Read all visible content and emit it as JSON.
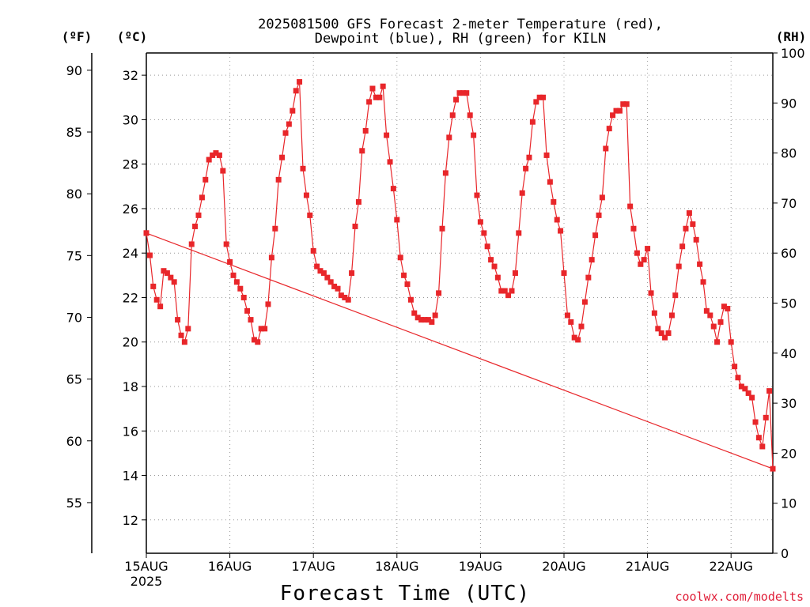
{
  "title": {
    "line1": "2025081500 GFS Forecast 2-meter Temperature (red),",
    "line2": "Dewpoint (blue), RH (green) for KILN"
  },
  "units": {
    "fahrenheit": "(ºF)",
    "celsius": "(ºC)",
    "rh": "(RH)"
  },
  "xaxis_title": "Forecast Time (UTC)",
  "credit": "coolwx.com/modelts",
  "colors": {
    "temperature": "#e8262a",
    "dewpoint": "#1f3fd8",
    "rh": "#00c400",
    "axis": "#000000",
    "credit": "#e0203a"
  },
  "chart_data": {
    "type": "line",
    "grid": true,
    "x_unit": "days since 15AUG 00Z",
    "xlim": [
      0,
      7.5
    ],
    "x_ticks": [
      {
        "x": 0,
        "label": "15AUG",
        "sublabel": "2025"
      },
      {
        "x": 1,
        "label": "16AUG"
      },
      {
        "x": 2,
        "label": "17AUG"
      },
      {
        "x": 3,
        "label": "18AUG"
      },
      {
        "x": 4,
        "label": "19AUG"
      },
      {
        "x": 5,
        "label": "20AUG"
      },
      {
        "x": 6,
        "label": "21AUG"
      },
      {
        "x": 7,
        "label": "22AUG"
      }
    ],
    "y_celsius": {
      "ylim": [
        10.5,
        33
      ],
      "ticks": [
        12,
        14,
        16,
        18,
        20,
        22,
        24,
        26,
        28,
        30,
        32
      ]
    },
    "y_fahrenheit": {
      "ticks": [
        55,
        60,
        65,
        70,
        75,
        80,
        85,
        90
      ]
    },
    "y_rh": {
      "ylim": [
        0,
        100
      ],
      "ticks": [
        0,
        10,
        20,
        30,
        40,
        50,
        60,
        70,
        80,
        90,
        100
      ]
    },
    "series": [
      {
        "name": "Temperature",
        "axis": "celsius",
        "marker": "filled-square",
        "points": [
          [
            0.0,
            24.9
          ],
          [
            0.042,
            23.9
          ],
          [
            0.083,
            22.5
          ],
          [
            0.125,
            21.9
          ],
          [
            0.167,
            21.6
          ],
          [
            0.208,
            23.2
          ],
          [
            0.25,
            23.1
          ],
          [
            0.292,
            22.9
          ],
          [
            0.333,
            22.7
          ],
          [
            0.375,
            21.0
          ],
          [
            0.417,
            20.3
          ],
          [
            0.458,
            20.0
          ],
          [
            0.5,
            20.6
          ],
          [
            0.542,
            24.4
          ],
          [
            0.583,
            25.2
          ],
          [
            0.625,
            25.7
          ],
          [
            0.667,
            26.5
          ],
          [
            0.708,
            27.3
          ],
          [
            0.75,
            28.2
          ],
          [
            0.792,
            28.4
          ],
          [
            0.833,
            28.5
          ],
          [
            0.875,
            28.4
          ],
          [
            0.917,
            27.7
          ],
          [
            0.958,
            24.4
          ],
          [
            1.0,
            23.6
          ],
          [
            1.042,
            23.0
          ],
          [
            1.083,
            22.7
          ],
          [
            1.125,
            22.4
          ],
          [
            1.167,
            22.0
          ],
          [
            1.208,
            21.4
          ],
          [
            1.25,
            21.0
          ],
          [
            1.292,
            20.1
          ],
          [
            1.333,
            20.0
          ],
          [
            1.375,
            20.6
          ],
          [
            1.417,
            20.6
          ],
          [
            1.458,
            21.7
          ],
          [
            1.5,
            23.8
          ],
          [
            1.542,
            25.1
          ],
          [
            1.583,
            27.3
          ],
          [
            1.625,
            28.3
          ],
          [
            1.667,
            29.4
          ],
          [
            1.708,
            29.8
          ],
          [
            1.75,
            30.4
          ],
          [
            1.792,
            31.3
          ],
          [
            1.833,
            31.7
          ],
          [
            1.875,
            27.8
          ],
          [
            1.917,
            26.6
          ],
          [
            1.958,
            25.7
          ],
          [
            2.0,
            24.1
          ],
          [
            2.042,
            23.4
          ],
          [
            2.083,
            23.2
          ],
          [
            2.125,
            23.1
          ],
          [
            2.167,
            22.9
          ],
          [
            2.208,
            22.7
          ],
          [
            2.25,
            22.5
          ],
          [
            2.292,
            22.4
          ],
          [
            2.333,
            22.1
          ],
          [
            2.375,
            22.0
          ],
          [
            2.417,
            21.9
          ],
          [
            2.458,
            23.1
          ],
          [
            2.5,
            25.2
          ],
          [
            2.542,
            26.3
          ],
          [
            2.583,
            28.6
          ],
          [
            2.625,
            29.5
          ],
          [
            2.667,
            30.8
          ],
          [
            2.708,
            31.4
          ],
          [
            2.75,
            31.0
          ],
          [
            2.792,
            31.0
          ],
          [
            2.833,
            31.5
          ],
          [
            2.875,
            29.3
          ],
          [
            2.917,
            28.1
          ],
          [
            2.958,
            26.9
          ],
          [
            3.0,
            25.5
          ],
          [
            3.042,
            23.8
          ],
          [
            3.083,
            23.0
          ],
          [
            3.125,
            22.6
          ],
          [
            3.167,
            21.9
          ],
          [
            3.208,
            21.3
          ],
          [
            3.25,
            21.1
          ],
          [
            3.292,
            21.0
          ],
          [
            3.333,
            21.0
          ],
          [
            3.375,
            21.0
          ],
          [
            3.417,
            20.9
          ],
          [
            3.458,
            21.2
          ],
          [
            3.5,
            22.2
          ],
          [
            3.542,
            25.1
          ],
          [
            3.583,
            27.6
          ],
          [
            3.625,
            29.2
          ],
          [
            3.667,
            30.2
          ],
          [
            3.708,
            30.9
          ],
          [
            3.75,
            31.2
          ],
          [
            3.792,
            31.2
          ],
          [
            3.833,
            31.2
          ],
          [
            3.875,
            30.2
          ],
          [
            3.917,
            29.3
          ],
          [
            3.958,
            26.6
          ],
          [
            4.0,
            25.4
          ],
          [
            4.042,
            24.9
          ],
          [
            4.083,
            24.3
          ],
          [
            4.125,
            23.7
          ],
          [
            4.167,
            23.4
          ],
          [
            4.208,
            22.9
          ],
          [
            4.25,
            22.3
          ],
          [
            4.292,
            22.3
          ],
          [
            4.333,
            22.1
          ],
          [
            4.375,
            22.3
          ],
          [
            4.417,
            23.1
          ],
          [
            4.458,
            24.9
          ],
          [
            4.5,
            26.7
          ],
          [
            4.542,
            27.8
          ],
          [
            4.583,
            28.3
          ],
          [
            4.625,
            29.9
          ],
          [
            4.667,
            30.8
          ],
          [
            4.708,
            31.0
          ],
          [
            4.75,
            31.0
          ],
          [
            4.792,
            28.4
          ],
          [
            4.833,
            27.2
          ],
          [
            4.875,
            26.3
          ],
          [
            4.917,
            25.5
          ],
          [
            4.958,
            25.0
          ],
          [
            5.0,
            23.1
          ],
          [
            5.042,
            21.2
          ],
          [
            5.083,
            20.9
          ],
          [
            5.125,
            20.2
          ],
          [
            5.167,
            20.1
          ],
          [
            5.208,
            20.7
          ],
          [
            5.25,
            21.8
          ],
          [
            5.292,
            22.9
          ],
          [
            5.333,
            23.7
          ],
          [
            5.375,
            24.8
          ],
          [
            5.417,
            25.7
          ],
          [
            5.458,
            26.5
          ],
          [
            5.5,
            28.7
          ],
          [
            5.542,
            29.6
          ],
          [
            5.583,
            30.2
          ],
          [
            5.625,
            30.4
          ],
          [
            5.667,
            30.4
          ],
          [
            5.708,
            30.7
          ],
          [
            5.75,
            30.7
          ],
          [
            5.792,
            26.1
          ],
          [
            5.833,
            25.1
          ],
          [
            5.875,
            24.0
          ],
          [
            5.917,
            23.5
          ],
          [
            5.958,
            23.7
          ],
          [
            6.0,
            24.2
          ],
          [
            6.042,
            22.2
          ],
          [
            6.083,
            21.3
          ],
          [
            6.125,
            20.6
          ],
          [
            6.167,
            20.4
          ],
          [
            6.208,
            20.2
          ],
          [
            6.25,
            20.4
          ],
          [
            6.292,
            21.2
          ],
          [
            6.333,
            22.1
          ],
          [
            6.375,
            23.4
          ],
          [
            6.417,
            24.3
          ],
          [
            6.458,
            25.1
          ],
          [
            6.5,
            25.8
          ],
          [
            6.542,
            25.3
          ],
          [
            6.583,
            24.6
          ],
          [
            6.625,
            23.5
          ],
          [
            6.667,
            22.7
          ],
          [
            6.708,
            21.4
          ],
          [
            6.75,
            21.2
          ],
          [
            6.792,
            20.7
          ],
          [
            6.833,
            20.0
          ],
          [
            6.875,
            20.9
          ],
          [
            6.917,
            21.6
          ],
          [
            6.958,
            21.5
          ],
          [
            7.0,
            20.0
          ],
          [
            7.042,
            18.9
          ],
          [
            7.083,
            18.4
          ],
          [
            7.125,
            18.0
          ],
          [
            7.167,
            17.9
          ],
          [
            7.208,
            17.7
          ],
          [
            7.25,
            17.5
          ],
          [
            7.292,
            16.4
          ],
          [
            7.333,
            15.7
          ],
          [
            7.375,
            15.3
          ],
          [
            7.417,
            16.6
          ],
          [
            7.458,
            17.8
          ],
          [
            7.5,
            14.3
          ],
          [
            0.0,
            24.9
          ]
        ]
      },
      {
        "name": "Dewpoint",
        "axis": "celsius",
        "marker": "plus",
        "points": []
      },
      {
        "name": "RH",
        "axis": "rh",
        "marker": "open-square",
        "points": []
      }
    ]
  }
}
